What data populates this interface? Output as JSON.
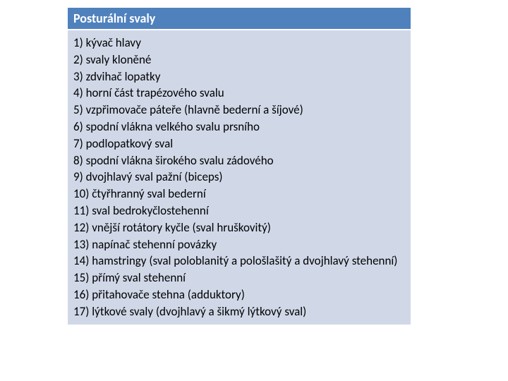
{
  "table": {
    "header_bg": "#4f81bd",
    "header_text_color": "#ffffff",
    "body_bg": "#d0d8e8",
    "body_text_color": "#000000",
    "header_fontsize": 18,
    "body_fontsize": 17,
    "title": "Posturální svaly",
    "items": [
      "1) kývač hlavy",
      "2) svaly kloněné",
      "3) zdvihač lopatky",
      "4) horní část trapézového svalu",
      "5) vzpřimovače páteře (hlavně bederní a šíjové)",
      "6) spodní vlákna velkého svalu prsního",
      "7) podlopatkový sval",
      "8) spodní vlákna širokého svalu zádového",
      "9) dvojhlavý sval pažní (biceps)",
      "10) čtyřhranný sval bederní",
      "11) sval bedrokyčlostehenní",
      "12) vnější rotátory kyčle (sval hruškovitý)",
      "13) napínač stehenní povázky",
      "14) hamstringy (sval poloblanitý a pološlašitý a dvojhlavý stehenní)",
      "15) přímý sval stehenní",
      "16) přitahovače stehna (adduktory)",
      "17) lýtkové svaly (dvojhlavý a šikmý lýtkový sval)"
    ]
  }
}
